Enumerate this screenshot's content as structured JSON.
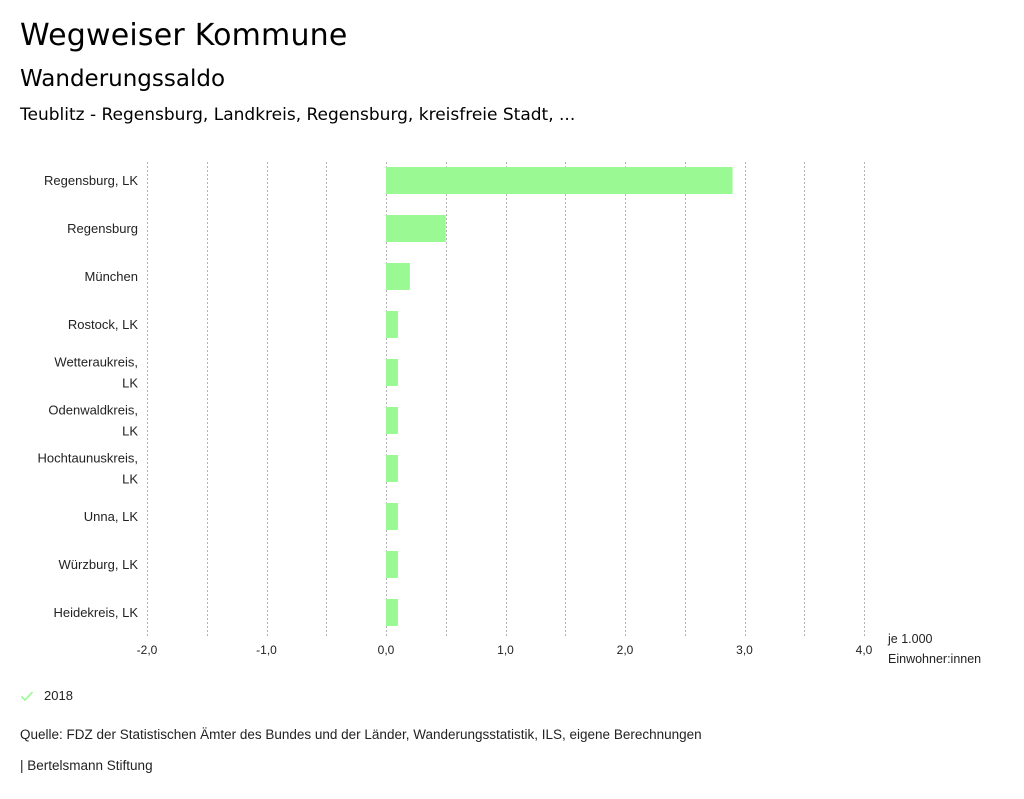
{
  "header": {
    "title": "Wegweiser Kommune",
    "subtitle": "Wanderungssaldo",
    "region": "Teublitz - Regensburg, Landkreis, Regensburg, kreisfreie Stadt, ..."
  },
  "chart_data": {
    "type": "bar",
    "orientation": "horizontal",
    "title": "Wanderungssaldo",
    "categories": [
      [
        "Regensburg, LK"
      ],
      [
        "Regensburg"
      ],
      [
        "München"
      ],
      [
        "Rostock, LK"
      ],
      [
        "Wetteraukreis,",
        "LK"
      ],
      [
        "Odenwaldkreis,",
        "LK"
      ],
      [
        "Hochtaunuskreis,",
        "LK"
      ],
      [
        "Unna, LK"
      ],
      [
        "Würzburg, LK"
      ],
      [
        "Heidekreis, LK"
      ]
    ],
    "series": [
      {
        "name": "2018",
        "color": "#9af993",
        "values": [
          2.9,
          0.5,
          0.2,
          0.1,
          0.1,
          0.1,
          0.1,
          0.1,
          0.1,
          0.1
        ]
      }
    ],
    "xlim": [
      -2.0,
      4.0
    ],
    "xticks": [
      -2.0,
      -1.0,
      0.0,
      1.0,
      2.0,
      3.0,
      4.0
    ],
    "xtick_labels": [
      "-2,0",
      "-1,0",
      "0,0",
      "1,0",
      "2,0",
      "3,0",
      "4,0"
    ],
    "minor_grid_step": 0.5,
    "xlabel": [
      "je 1.000",
      "Einwohner:innen"
    ],
    "grid": true,
    "grid_style": "dotted",
    "legend_position": "bottom-left"
  },
  "legend": {
    "items": [
      {
        "label": "2018",
        "icon": "check-icon",
        "color": "#9af993"
      }
    ]
  },
  "footer": {
    "source": "Quelle: FDZ der Statistischen Ämter des Bundes und der Länder, Wanderungsstatistik, ILS, eigene Berechnungen",
    "credit": "| Bertelsmann Stiftung"
  }
}
